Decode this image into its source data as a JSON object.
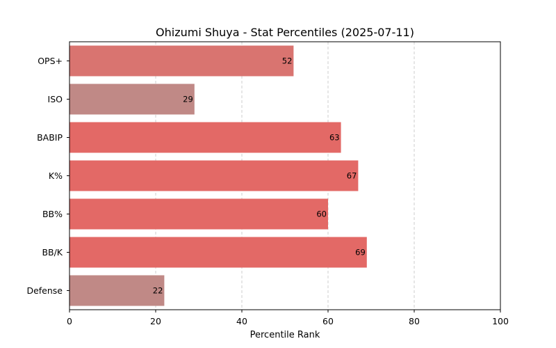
{
  "chart_data": {
    "type": "bar",
    "orientation": "horizontal",
    "title": "Ohizumi Shuya - Stat Percentiles (2025-07-11)",
    "xlabel": "Percentile Rank",
    "ylabel": "",
    "xlim": [
      0,
      100
    ],
    "x_ticks": [
      0,
      20,
      40,
      60,
      80,
      100
    ],
    "grid": "x-dashed",
    "categories": [
      "OPS+",
      "ISO",
      "BABIP",
      "K%",
      "BB%",
      "BB/K",
      "Defense"
    ],
    "values": [
      52,
      29,
      63,
      67,
      60,
      69,
      22
    ],
    "colors": [
      "#d97470",
      "#c08986",
      "#e36966",
      "#e36966",
      "#e36966",
      "#e36966",
      "#c08986"
    ]
  }
}
